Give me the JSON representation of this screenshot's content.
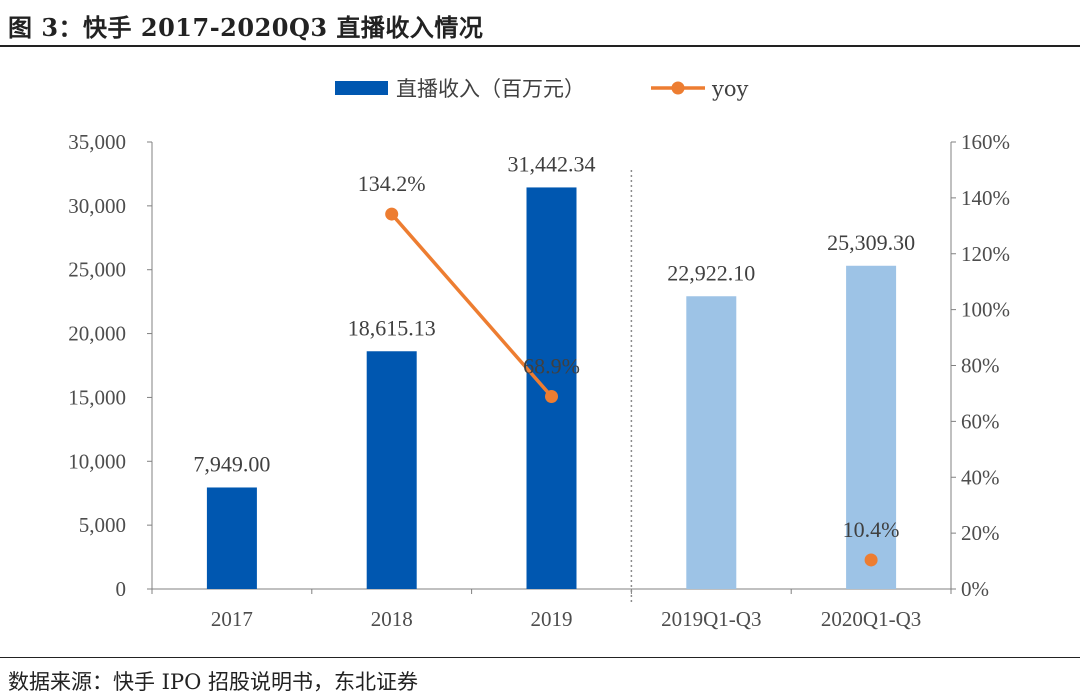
{
  "header": {
    "title": "图 3：快手 2017-2020Q3 直播收入情况"
  },
  "footer": {
    "source": "数据来源：快手 IPO 招股说明书，东北证券"
  },
  "colors": {
    "bar_dark": "#0057b0",
    "bar_light": "#9dc3e6",
    "line": "#ed7d31",
    "axis": "#808080"
  },
  "chart_data": {
    "type": "bar",
    "categories": [
      "2017",
      "2018",
      "2019",
      "2019Q1-Q3",
      "2020Q1-Q3"
    ],
    "series": [
      {
        "name": "直播收入（百万元）",
        "type": "bar",
        "axis": "left",
        "values": [
          7949.0,
          18615.13,
          31442.34,
          22922.1,
          25309.3
        ],
        "labels": [
          "7,949.00",
          "18,615.13",
          "31,442.34",
          "22,922.10",
          "25,309.30"
        ]
      },
      {
        "name": "yoy",
        "type": "line",
        "axis": "right",
        "values": [
          null,
          134.2,
          68.9,
          null,
          10.4
        ],
        "labels": [
          "",
          "134.2%",
          "68.9%",
          "",
          "10.4%"
        ]
      }
    ],
    "y_left": {
      "ylim": [
        0,
        35000
      ],
      "ticks": [
        "0",
        "5,000",
        "10,000",
        "15,000",
        "20,000",
        "25,000",
        "30,000",
        "35,000"
      ]
    },
    "y_right": {
      "ylim": [
        0,
        160
      ],
      "ticks": [
        "0%",
        "20%",
        "40%",
        "60%",
        "80%",
        "100%",
        "120%",
        "140%",
        "160%"
      ]
    },
    "legend_position": "top-center",
    "grid": false,
    "divider": "dotted vertical line between 2019 and 2019Q1-Q3"
  }
}
